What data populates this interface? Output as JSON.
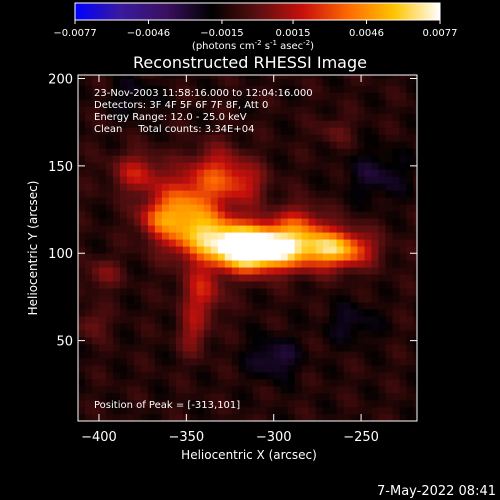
{
  "figure": {
    "title": "Reconstructed RHESSI Image",
    "date_stamp": "7-May-2022 08:41",
    "info_lines": [
      "23-Nov-2003 11:58:16.000 to 12:04:16.000",
      "Detectors: 3F 4F 5F 6F 7F 8F, Att 0",
      "Energy Range: 12.0 - 25.0 keV",
      "Clean     Total counts: 3.34E+04"
    ],
    "peak_text": "Position of Peak = [-313,101]"
  },
  "colorbar": {
    "ticks": [
      "-0.0077",
      "-0.0046",
      "-0.0015",
      "0.0015",
      "0.0046",
      "0.0077"
    ],
    "range": [
      -0.0077,
      0.0077
    ],
    "units": "(photons cm",
    "units_sup1": "-2",
    "units_mid": " s",
    "units_sup2": "-1",
    "units_mid2": " asec",
    "units_sup3": "-2",
    "units_end": ")",
    "stops": [
      "#0000ff",
      "#3a1a9e",
      "#3a1060",
      "#000000",
      "#5a0f10",
      "#c8100c",
      "#ff6a00",
      "#ffc400",
      "#ffffff"
    ]
  },
  "chart_data": {
    "type": "heatmap",
    "title": "Reconstructed RHESSI Image",
    "xlabel": "Heliocentric X (arcsec)",
    "ylabel": "Heliocentric Y (arcsec)",
    "xlim": [
      -412,
      -218
    ],
    "ylim": [
      4,
      202
    ],
    "xticks": [
      -400,
      -350,
      -300,
      -250
    ],
    "yticks": [
      50,
      100,
      150,
      200
    ],
    "xtick_labels": [
      "−400",
      "−350",
      "−300",
      "−250"
    ],
    "ytick_labels": [
      "50",
      "100",
      "150",
      "200"
    ],
    "peak": [
      -313,
      101
    ],
    "background_level": -0.0012,
    "sources": [
      {
        "x": -313,
        "y": 102,
        "sx": 14,
        "sy": 8,
        "amp": 0.0092
      },
      {
        "x": -290,
        "y": 105,
        "sx": 20,
        "sy": 9,
        "amp": 0.0062
      },
      {
        "x": -262,
        "y": 102,
        "sx": 13,
        "sy": 7,
        "amp": 0.005
      },
      {
        "x": -338,
        "y": 110,
        "sx": 16,
        "sy": 10,
        "amp": 0.0058
      },
      {
        "x": -352,
        "y": 127,
        "sx": 12,
        "sy": 12,
        "amp": 0.0046
      },
      {
        "x": -333,
        "y": 145,
        "sx": 11,
        "sy": 11,
        "amp": 0.0036
      },
      {
        "x": -378,
        "y": 146,
        "sx": 10,
        "sy": 8,
        "amp": 0.003
      },
      {
        "x": -367,
        "y": 120,
        "sx": 8,
        "sy": 7,
        "amp": 0.0028
      },
      {
        "x": -341,
        "y": 78,
        "sx": 8,
        "sy": 10,
        "amp": 0.0032
      },
      {
        "x": -346,
        "y": 55,
        "sx": 6,
        "sy": 9,
        "amp": 0.0022
      },
      {
        "x": -316,
        "y": 140,
        "sx": 9,
        "sy": 8,
        "amp": 0.0024
      },
      {
        "x": -285,
        "y": 120,
        "sx": 9,
        "sy": 7,
        "amp": 0.002
      },
      {
        "x": -398,
        "y": 88,
        "sx": 7,
        "sy": 6,
        "amp": 0.0018
      },
      {
        "x": -404,
        "y": 60,
        "sx": 6,
        "sy": 6,
        "amp": 0.0016
      },
      {
        "x": -265,
        "y": 170,
        "sx": 7,
        "sy": 6,
        "amp": 0.0012
      },
      {
        "x": -300,
        "y": 40,
        "sx": 10,
        "sy": 8,
        "amp": -0.002
      },
      {
        "x": -240,
        "y": 145,
        "sx": 12,
        "sy": 10,
        "amp": -0.0016
      },
      {
        "x": -380,
        "y": 190,
        "sx": 9,
        "sy": 8,
        "amp": -0.0012
      },
      {
        "x": -255,
        "y": 60,
        "sx": 10,
        "sy": 8,
        "amp": -0.0014
      }
    ]
  }
}
